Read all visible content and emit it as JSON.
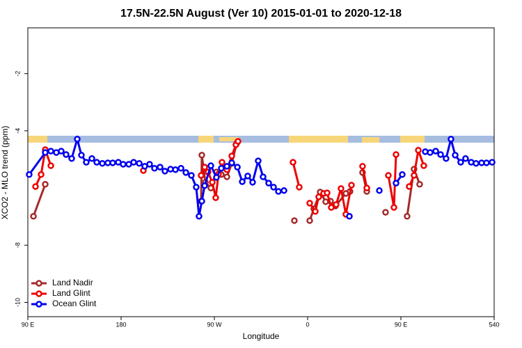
{
  "chart_data": {
    "type": "line",
    "title": "17.5N-22.5N August (Ver 10)   2015-01-01 to 2020-12-18",
    "xlabel": "Longitude",
    "ylabel": "XCO2 - MLO trend (ppm)",
    "xlim": [
      90,
      540
    ],
    "ylim": [
      -10.5,
      -0.4
    ],
    "xticks": [
      {
        "value": 90,
        "label": "90 E"
      },
      180,
      {
        "value": 270,
        "label": "90 W"
      },
      {
        "value": 360,
        "label": "0"
      },
      {
        "value": 450,
        "label": "90 E"
      },
      540
    ],
    "yticks": [
      -10,
      -8,
      -4,
      -2
    ],
    "legend": "bottom-left",
    "series": [
      {
        "name": "Land Nadir",
        "color": "#a52a2a",
        "x": [
          95.4,
          106.8,
          null,
          257.2,
          257.9,
          261.3,
          266.6,
          272.0,
          276.7,
          282.1,
          286.8,
          291.5,
          null,
          347.2,
          null,
          362.0,
          366.0,
          372.1,
          377.4,
          382.1,
          386.8,
          396.9,
          400.9,
          null,
          413.0,
          417.1,
          null,
          435.2,
          null,
          456.0,
          462.7,
          468.1
        ],
        "values": [
          -6.99,
          -5.87,
          null,
          -6.46,
          -4.85,
          -5.8,
          -6.0,
          -5.44,
          -5.53,
          -5.61,
          -5.14,
          -4.44,
          null,
          -7.14,
          null,
          -7.14,
          -6.73,
          -6.14,
          -6.48,
          -6.46,
          -6.63,
          -6.19,
          -6.12,
          null,
          -5.46,
          -6.12,
          null,
          -6.85,
          null,
          -6.99,
          -5.34,
          -5.87
        ]
      },
      {
        "name": "Land Glint",
        "color": "#ee0000",
        "x": [
          97.4,
          102.8,
          106.8,
          112.2,
          null,
          201.5,
          null,
          257.2,
          260.6,
          263.9,
          268.0,
          271.3,
          274.0,
          277.4,
          282.1,
          286.8,
          290.8,
          292.8,
          null,
          345.9,
          351.9,
          null,
          362.0,
          367.4,
          370.7,
          375.4,
          378.8,
          382.8,
          387.5,
          392.2,
          396.9,
          402.3,
          null,
          413.0,
          417.1,
          null,
          437.9,
          443.3,
          445.3,
          null,
          458.0,
          462.7,
          466.8,
          472.1
        ],
        "values": [
          -5.95,
          -5.53,
          -4.66,
          -5.22,
          null,
          -5.39,
          null,
          -5.56,
          -5.27,
          -5.44,
          -5.8,
          -6.34,
          -5.51,
          -5.1,
          -5.36,
          -4.88,
          -4.49,
          -4.37,
          null,
          -5.1,
          -5.97,
          null,
          -6.53,
          -6.82,
          -6.31,
          -6.19,
          -6.17,
          -6.68,
          -6.58,
          -6.02,
          -6.92,
          -5.9,
          null,
          -5.24,
          -6.0,
          null,
          -5.56,
          -6.68,
          -4.83,
          null,
          -5.95,
          -5.56,
          -4.68,
          -5.22
        ]
      },
      {
        "name": "Ocean Glint",
        "color": "#0000ee",
        "x": [
          91.3,
          106.8,
          112.2,
          117.5,
          122.2,
          126.9,
          132.3,
          137.7,
          141.7,
          146.4,
          151.8,
          156.5,
          161.9,
          167.2,
          171.9,
          177.3,
          182.0,
          187.4,
          192.1,
          197.5,
          202.8,
          207.5,
          212.2,
          217.6,
          222.3,
          227.7,
          232.4,
          237.8,
          242.5,
          247.8,
          252.5,
          255.2,
          257.9,
          260.6,
          266.6,
          272.0,
          276.7,
          282.1,
          286.8,
          292.2,
          296.9,
          302.2,
          306.9,
          312.3,
          317.0,
          322.4,
          327.1,
          331.8,
          337.2,
          null,
          400.3,
          null,
          429.2,
          null,
          445.3,
          451.3,
          null,
          473.5,
          478.2,
          483.6,
          488.3,
          493.6,
          498.3,
          502.4,
          507.7,
          512.4,
          517.8,
          522.5,
          527.9,
          532.6,
          538.0
        ],
        "values": [
          -5.53,
          -4.76,
          -4.71,
          -4.76,
          -4.71,
          -4.83,
          -4.97,
          -4.29,
          -4.85,
          -5.1,
          -4.97,
          -5.1,
          -5.14,
          -5.12,
          -5.12,
          -5.1,
          -5.17,
          -5.17,
          -5.1,
          -5.14,
          -5.24,
          -5.17,
          -5.31,
          -5.27,
          -5.41,
          -5.34,
          -5.36,
          -5.31,
          -5.46,
          -5.56,
          -5.97,
          -6.99,
          -6.46,
          -5.92,
          -5.22,
          -5.63,
          -5.31,
          -5.24,
          -5.12,
          -5.27,
          -5.78,
          -5.58,
          -5.8,
          -5.05,
          -5.61,
          -5.83,
          -5.97,
          -6.12,
          -6.09,
          null,
          -6.99,
          null,
          -6.09,
          null,
          -5.83,
          -5.53,
          null,
          -4.73,
          -4.76,
          -4.71,
          -4.83,
          -4.97,
          -4.29,
          -4.85,
          -5.1,
          -4.97,
          -5.1,
          -5.14,
          -5.12,
          -5.12,
          -5.1
        ]
      }
    ]
  }
}
